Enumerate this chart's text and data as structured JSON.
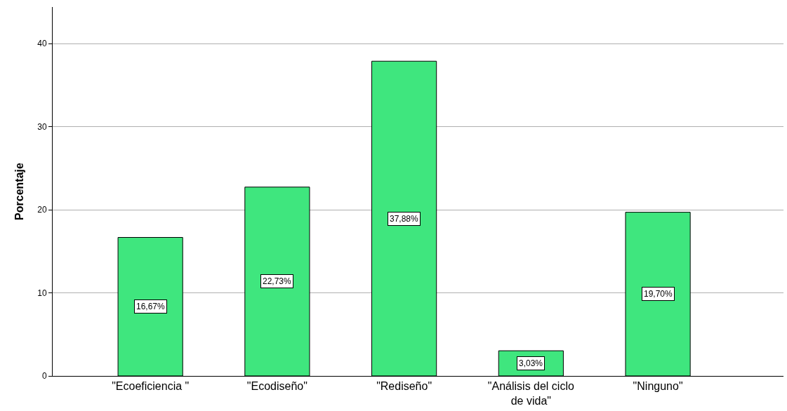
{
  "chart_data": {
    "type": "bar",
    "ylabel": "Porcentaje",
    "categories": [
      "\"Ecoeficiencia \"",
      "\"Ecodiseño\"",
      "\"Rediseño\"",
      "\"Análisis del ciclo de vida\"",
      "\"Ninguno\""
    ],
    "values": [
      16.67,
      22.73,
      37.88,
      3.03,
      19.7
    ],
    "value_labels": [
      "16,67%",
      "22,73%",
      "37,88%",
      "3,03%",
      "19,70%"
    ],
    "color": "#3fe67e",
    "ylim": [
      0,
      44.4
    ],
    "yticks": [
      0,
      10,
      20,
      30,
      40
    ],
    "grid": "y"
  }
}
